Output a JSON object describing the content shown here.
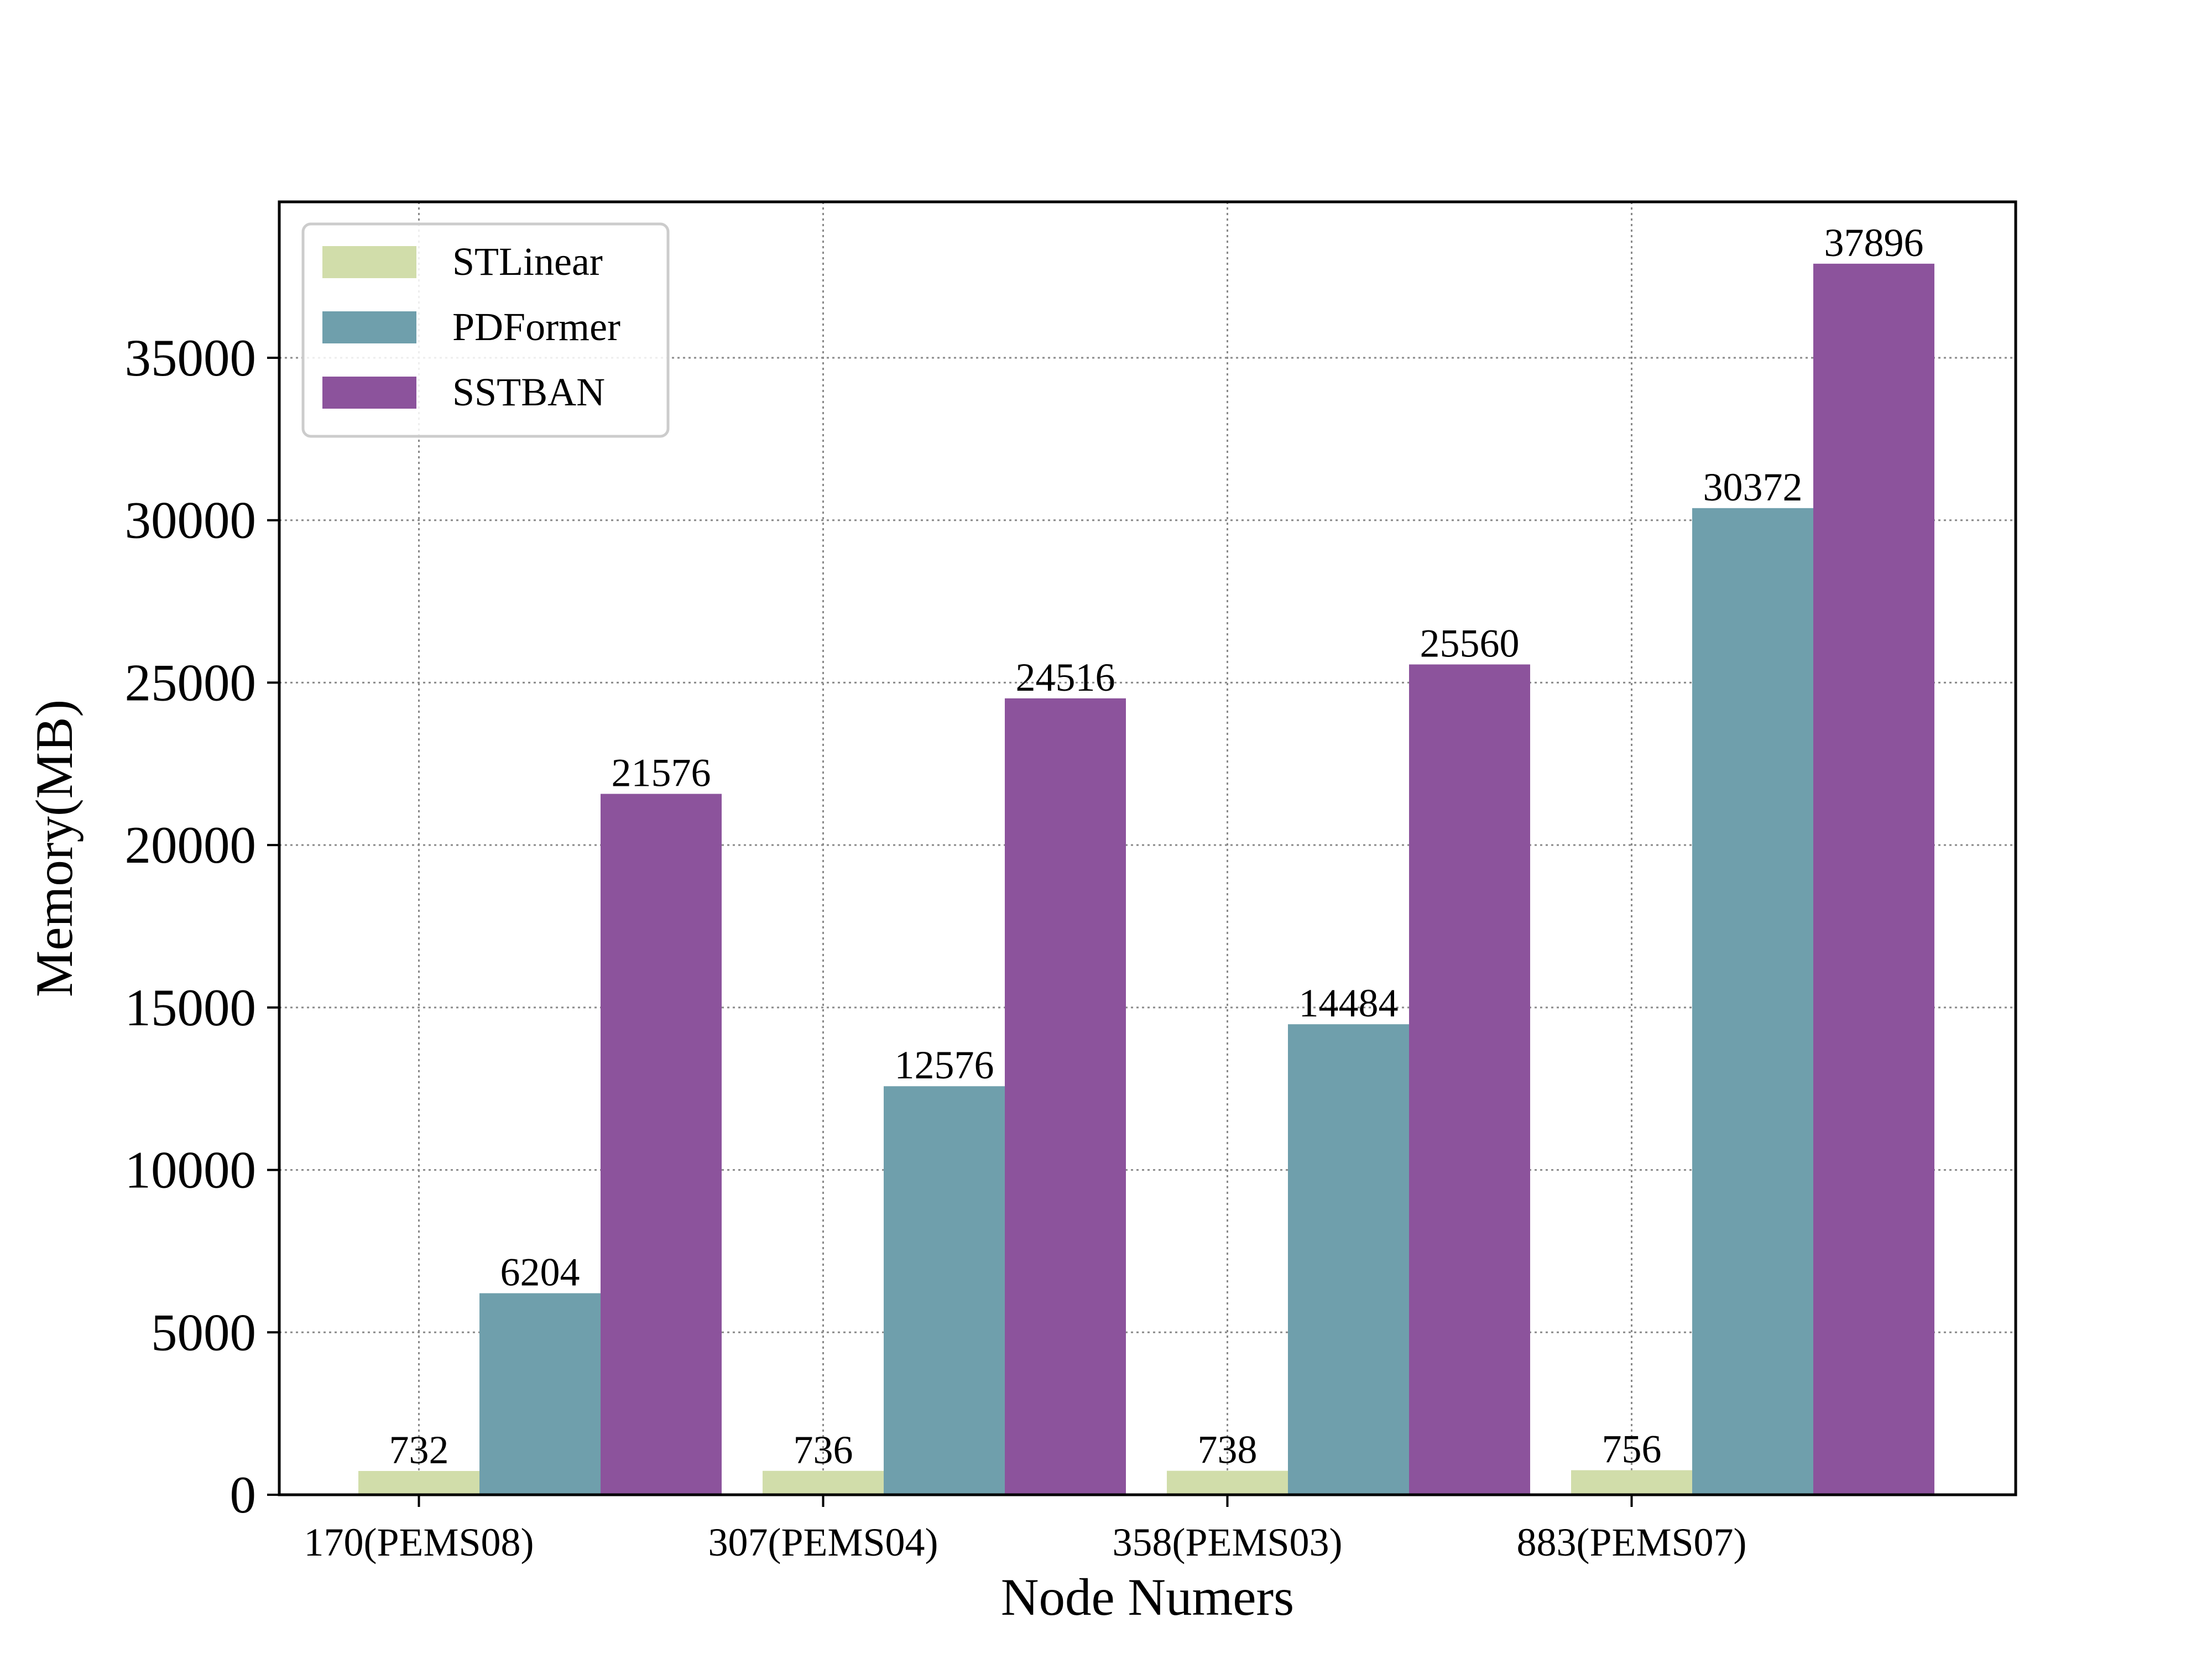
{
  "chart_data": {
    "type": "bar",
    "title": "",
    "xlabel": "Node Numers",
    "ylabel": "Memory(MB)",
    "categories": [
      "170(PEMS08)",
      "307(PEMS04)",
      "358(PEMS03)",
      "883(PEMS07)"
    ],
    "series": [
      {
        "name": "STLinear",
        "values": [
          732,
          736,
          738,
          756
        ],
        "color": "#d1ddaa"
      },
      {
        "name": "PDFormer",
        "values": [
          6204,
          12576,
          14484,
          30372
        ],
        "color": "#6f9fac"
      },
      {
        "name": "SSTBAN",
        "values": [
          21576,
          24516,
          25560,
          37896
        ],
        "color": "#8c539c"
      }
    ],
    "ylim": [
      0,
      39800
    ],
    "yticks": [
      0,
      5000,
      10000,
      15000,
      20000,
      25000,
      30000,
      35000
    ],
    "grid": true,
    "grid_style": "dotted",
    "legend_position": "top-left",
    "data_labels": true
  }
}
